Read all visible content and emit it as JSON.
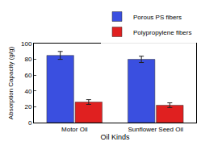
{
  "chart_data": {
    "type": "bar",
    "x_label": "Oil Kinds",
    "y_label": "Absorption Capacity (g/g)",
    "categories": [
      "Motor Oil",
      "Sunflower Seed Oil"
    ],
    "series": [
      {
        "name": "Porous PS fibers",
        "color": "#3a4fe0",
        "values": [
          85,
          80
        ],
        "errors": [
          5,
          4
        ]
      },
      {
        "name": "Polypropylene fibers",
        "color": "#e02020",
        "values": [
          26,
          22
        ],
        "errors": [
          3,
          3
        ]
      }
    ],
    "ylim": [
      0,
      100
    ],
    "yticks": [
      0,
      20,
      40,
      60,
      80,
      100
    ],
    "grid": false,
    "legend": "top right"
  }
}
